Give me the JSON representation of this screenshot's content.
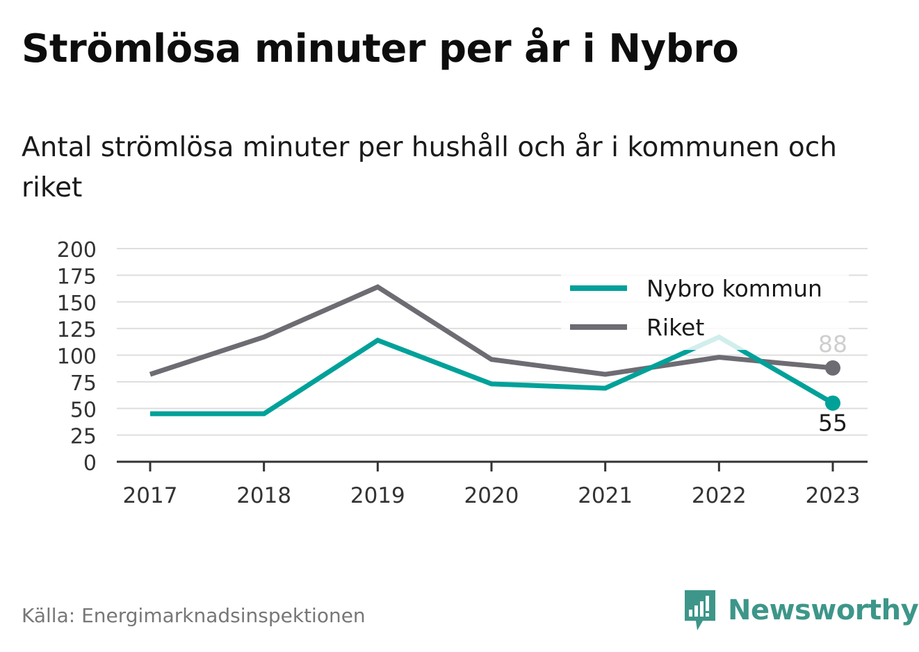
{
  "title": "Strömlösa minuter per år i Nybro",
  "subtitle": "Antal strömlösa minuter per hushåll och år i kommunen och riket",
  "source": "Källa: Energimarknadsinspektionen",
  "brand": {
    "name": "Newsworthy",
    "icon": "newsworthy-logo-icon",
    "color": "#3d9689"
  },
  "chart_data": {
    "type": "line",
    "x": [
      "2017",
      "2018",
      "2019",
      "2020",
      "2021",
      "2022",
      "2023"
    ],
    "ylim": [
      0,
      200
    ],
    "yticks": [
      "0",
      "25",
      "50",
      "75",
      "100",
      "125",
      "150",
      "175",
      "200"
    ],
    "grid": true,
    "legend_position": "top-right",
    "series": [
      {
        "name": "Nybro kommun",
        "color": "#00a199",
        "values": [
          45,
          45,
          114,
          73,
          69,
          117,
          55
        ],
        "end_label": "55"
      },
      {
        "name": "Riket",
        "color": "#6d6c72",
        "values": [
          82,
          117,
          164,
          96,
          82,
          98,
          88
        ],
        "end_label": "88"
      }
    ]
  }
}
